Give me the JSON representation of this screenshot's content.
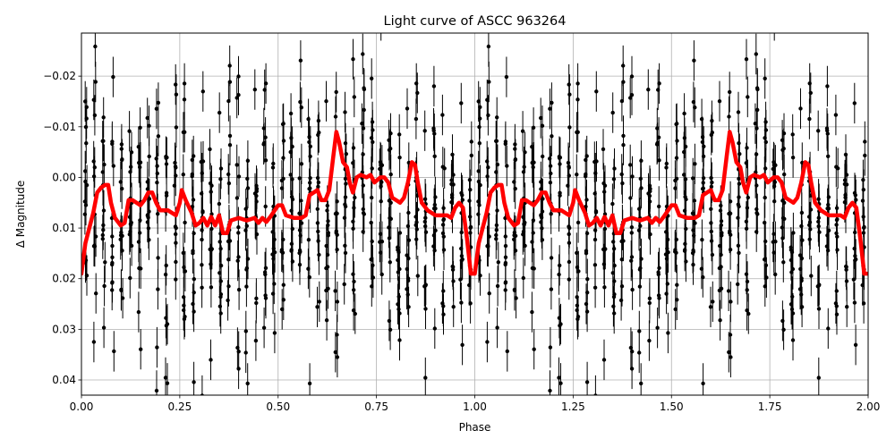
{
  "chart_data": {
    "type": "scatter",
    "title": "Light curve of ASCC 963264",
    "xlabel": "Phase",
    "ylabel": "Δ Magnitude",
    "xlim": [
      0.0,
      2.0
    ],
    "ylim": [
      0.043,
      -0.0285
    ],
    "y_inverted": true,
    "grid": true,
    "x_ticks": [
      {
        "value": 0.0,
        "label": "0.00"
      },
      {
        "value": 0.25,
        "label": "0.25"
      },
      {
        "value": 0.5,
        "label": "0.50"
      },
      {
        "value": 0.75,
        "label": "0.75"
      },
      {
        "value": 1.0,
        "label": "1.00"
      },
      {
        "value": 1.25,
        "label": "1.25"
      },
      {
        "value": 1.5,
        "label": "1.50"
      },
      {
        "value": 1.75,
        "label": "1.75"
      },
      {
        "value": 2.0,
        "label": "2.00"
      }
    ],
    "y_ticks": [
      {
        "value": -0.02,
        "label": "−0.02"
      },
      {
        "value": -0.01,
        "label": "−0.01"
      },
      {
        "value": 0.0,
        "label": "0.00"
      },
      {
        "value": 0.01,
        "label": "0.01"
      },
      {
        "value": 0.02,
        "label": "0.02"
      },
      {
        "value": 0.03,
        "label": "0.03"
      },
      {
        "value": 0.04,
        "label": "0.04"
      }
    ],
    "observations": {
      "marker_color": "#000000",
      "scatter_center": 0.007,
      "scatter_spread": 0.013,
      "error_bar_mag": 0.004,
      "columns_per_phase": 44,
      "points_per_column": 14,
      "repeated_over_two_cycles": true
    },
    "model_curve": {
      "color": "#ff0000",
      "points": [
        [
          0.0,
          0.019
        ],
        [
          0.01,
          0.013
        ],
        [
          0.02,
          0.01
        ],
        [
          0.03,
          0.007
        ],
        [
          0.04,
          0.003
        ],
        [
          0.05,
          0.002
        ],
        [
          0.06,
          0.0015
        ],
        [
          0.068,
          0.0015
        ],
        [
          0.075,
          0.005
        ],
        [
          0.085,
          0.008
        ],
        [
          0.1,
          0.0095
        ],
        [
          0.11,
          0.009
        ],
        [
          0.12,
          0.0045
        ],
        [
          0.13,
          0.0045
        ],
        [
          0.15,
          0.0055
        ],
        [
          0.16,
          0.0045
        ],
        [
          0.17,
          0.003
        ],
        [
          0.18,
          0.003
        ],
        [
          0.19,
          0.005
        ],
        [
          0.2,
          0.0065
        ],
        [
          0.22,
          0.0065
        ],
        [
          0.24,
          0.0075
        ],
        [
          0.25,
          0.005
        ],
        [
          0.255,
          0.0025
        ],
        [
          0.265,
          0.0045
        ],
        [
          0.28,
          0.007
        ],
        [
          0.29,
          0.0095
        ],
        [
          0.3,
          0.009
        ],
        [
          0.31,
          0.008
        ],
        [
          0.32,
          0.0095
        ],
        [
          0.33,
          0.0078
        ],
        [
          0.34,
          0.0095
        ],
        [
          0.35,
          0.0075
        ],
        [
          0.36,
          0.011
        ],
        [
          0.37,
          0.011
        ],
        [
          0.38,
          0.0085
        ],
        [
          0.4,
          0.008
        ],
        [
          0.42,
          0.0085
        ],
        [
          0.44,
          0.008
        ],
        [
          0.45,
          0.009
        ],
        [
          0.46,
          0.008
        ],
        [
          0.47,
          0.0088
        ],
        [
          0.48,
          0.0078
        ],
        [
          0.5,
          0.0055
        ],
        [
          0.51,
          0.0055
        ],
        [
          0.52,
          0.0075
        ],
        [
          0.54,
          0.008
        ],
        [
          0.56,
          0.008
        ],
        [
          0.57,
          0.0075
        ],
        [
          0.58,
          0.0035
        ],
        [
          0.6,
          0.0025
        ],
        [
          0.61,
          0.0045
        ],
        [
          0.62,
          0.0045
        ],
        [
          0.63,
          0.0025
        ],
        [
          0.64,
          -0.004
        ],
        [
          0.648,
          -0.009
        ],
        [
          0.655,
          -0.007
        ],
        [
          0.665,
          -0.003
        ],
        [
          0.675,
          -0.002
        ],
        [
          0.682,
          0.001
        ],
        [
          0.69,
          0.003
        ],
        [
          0.7,
          0.0
        ],
        [
          0.71,
          -0.0005
        ],
        [
          0.725,
          0.0
        ],
        [
          0.735,
          -0.0005
        ],
        [
          0.745,
          0.001
        ],
        [
          0.76,
          0.0
        ],
        [
          0.77,
          0.0
        ],
        [
          0.78,
          0.001
        ],
        [
          0.79,
          0.004
        ],
        [
          0.8,
          0.0045
        ],
        [
          0.81,
          0.005
        ],
        [
          0.82,
          0.004
        ],
        [
          0.83,
          0.001
        ],
        [
          0.84,
          -0.003
        ],
        [
          0.848,
          -0.0025
        ],
        [
          0.855,
          0.001
        ],
        [
          0.865,
          0.005
        ],
        [
          0.88,
          0.0065
        ],
        [
          0.9,
          0.0075
        ],
        [
          0.93,
          0.0075
        ],
        [
          0.94,
          0.008
        ],
        [
          0.95,
          0.006
        ],
        [
          0.96,
          0.005
        ],
        [
          0.97,
          0.006
        ],
        [
          0.98,
          0.012
        ],
        [
          0.99,
          0.019
        ],
        [
          1.0,
          0.019
        ]
      ]
    }
  }
}
